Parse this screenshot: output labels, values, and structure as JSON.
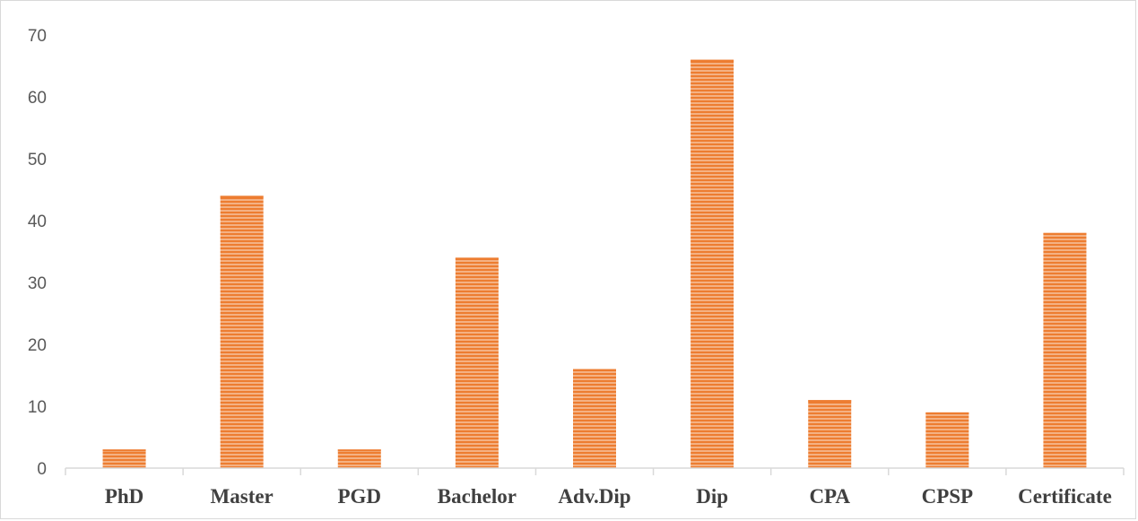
{
  "chart_data": {
    "type": "bar",
    "categories": [
      "PhD",
      "Master",
      "PGD",
      "Bachelor",
      "Adv.Dip",
      "Dip",
      "CPA",
      "CPSP",
      "Certificate"
    ],
    "values": [
      3,
      44,
      3,
      34,
      16,
      66,
      11,
      9,
      38
    ],
    "ylim": [
      0,
      70
    ],
    "yticks": [
      0,
      10,
      20,
      30,
      40,
      50,
      60,
      70
    ],
    "grid": false,
    "legend": "none",
    "colors": {
      "bar_fill": "#f4b183",
      "bar_stripe": "#ed7d31",
      "axis": "#d9d9d9"
    }
  }
}
